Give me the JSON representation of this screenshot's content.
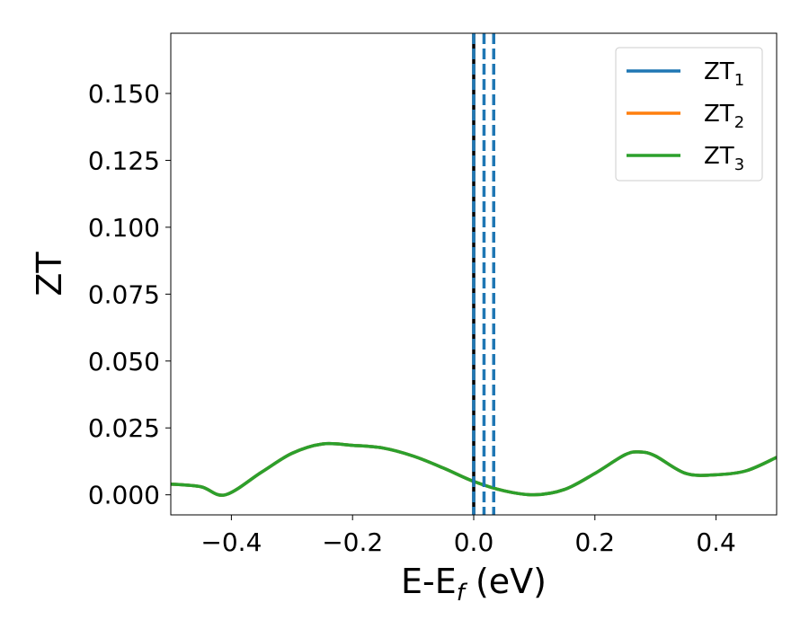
{
  "chart_data": {
    "type": "line",
    "xlabel_main": "E-E",
    "xlabel_sub": "f",
    "xlabel_unit": " (eV)",
    "ylabel": "ZT",
    "xlim": [
      -0.5,
      0.5
    ],
    "ylim": [
      -0.0075,
      0.1725
    ],
    "xticks": [
      -0.4,
      -0.2,
      0.0,
      0.2,
      0.4
    ],
    "xtick_labels": [
      "−0.4",
      "−0.2",
      "0.0",
      "0.2",
      "0.4"
    ],
    "yticks": [
      0.0,
      0.025,
      0.05,
      0.075,
      0.1,
      0.125,
      0.15
    ],
    "ytick_labels": [
      "0.000",
      "0.025",
      "0.050",
      "0.075",
      "0.100",
      "0.125",
      "0.150"
    ],
    "grid": false,
    "legend_position": "top-right",
    "series": [
      {
        "name_main": "ZT",
        "name_sub": "1",
        "color": "#1f77b4",
        "x": [
          -0.5,
          -0.45,
          -0.41,
          -0.35,
          -0.3,
          -0.25,
          -0.2,
          -0.15,
          -0.1,
          -0.05,
          0.0,
          0.05,
          0.1,
          0.15,
          0.2,
          0.25,
          0.275,
          0.3,
          0.35,
          0.4,
          0.45,
          0.5
        ],
        "y": [
          0.004,
          0.003,
          0.0,
          0.0085,
          0.0155,
          0.019,
          0.0185,
          0.0175,
          0.0145,
          0.01,
          0.005,
          0.0015,
          0.0,
          0.002,
          0.008,
          0.015,
          0.016,
          0.0145,
          0.008,
          0.0075,
          0.009,
          0.014
        ]
      },
      {
        "name_main": "ZT",
        "name_sub": "2",
        "color": "#ff7f0e",
        "x": [
          -0.5,
          -0.45,
          -0.41,
          -0.35,
          -0.3,
          -0.25,
          -0.2,
          -0.15,
          -0.1,
          -0.05,
          0.0,
          0.05,
          0.1,
          0.15,
          0.2,
          0.25,
          0.275,
          0.3,
          0.35,
          0.4,
          0.45,
          0.5
        ],
        "y": [
          0.004,
          0.003,
          0.0,
          0.0085,
          0.0155,
          0.019,
          0.0185,
          0.0175,
          0.0145,
          0.01,
          0.005,
          0.0015,
          0.0,
          0.002,
          0.008,
          0.015,
          0.016,
          0.0145,
          0.008,
          0.0075,
          0.009,
          0.014
        ]
      },
      {
        "name_main": "ZT",
        "name_sub": "3",
        "color": "#2ca02c",
        "x": [
          -0.5,
          -0.45,
          -0.41,
          -0.35,
          -0.3,
          -0.25,
          -0.2,
          -0.15,
          -0.1,
          -0.05,
          0.0,
          0.05,
          0.1,
          0.15,
          0.2,
          0.25,
          0.275,
          0.3,
          0.35,
          0.4,
          0.45,
          0.5
        ],
        "y": [
          0.004,
          0.003,
          0.0,
          0.0085,
          0.0155,
          0.019,
          0.0185,
          0.0175,
          0.0145,
          0.01,
          0.005,
          0.0015,
          0.0,
          0.002,
          0.008,
          0.015,
          0.016,
          0.0145,
          0.008,
          0.0075,
          0.009,
          0.014
        ]
      }
    ],
    "vertical_lines": [
      {
        "x": 0.0,
        "color": "#000000",
        "style": "solid"
      },
      {
        "x": 0.0,
        "color": "#1f77b4",
        "style": "dashed"
      },
      {
        "x": 0.017,
        "color": "#1f77b4",
        "style": "dashed"
      },
      {
        "x": 0.033,
        "color": "#1f77b4",
        "style": "dashed"
      }
    ]
  }
}
